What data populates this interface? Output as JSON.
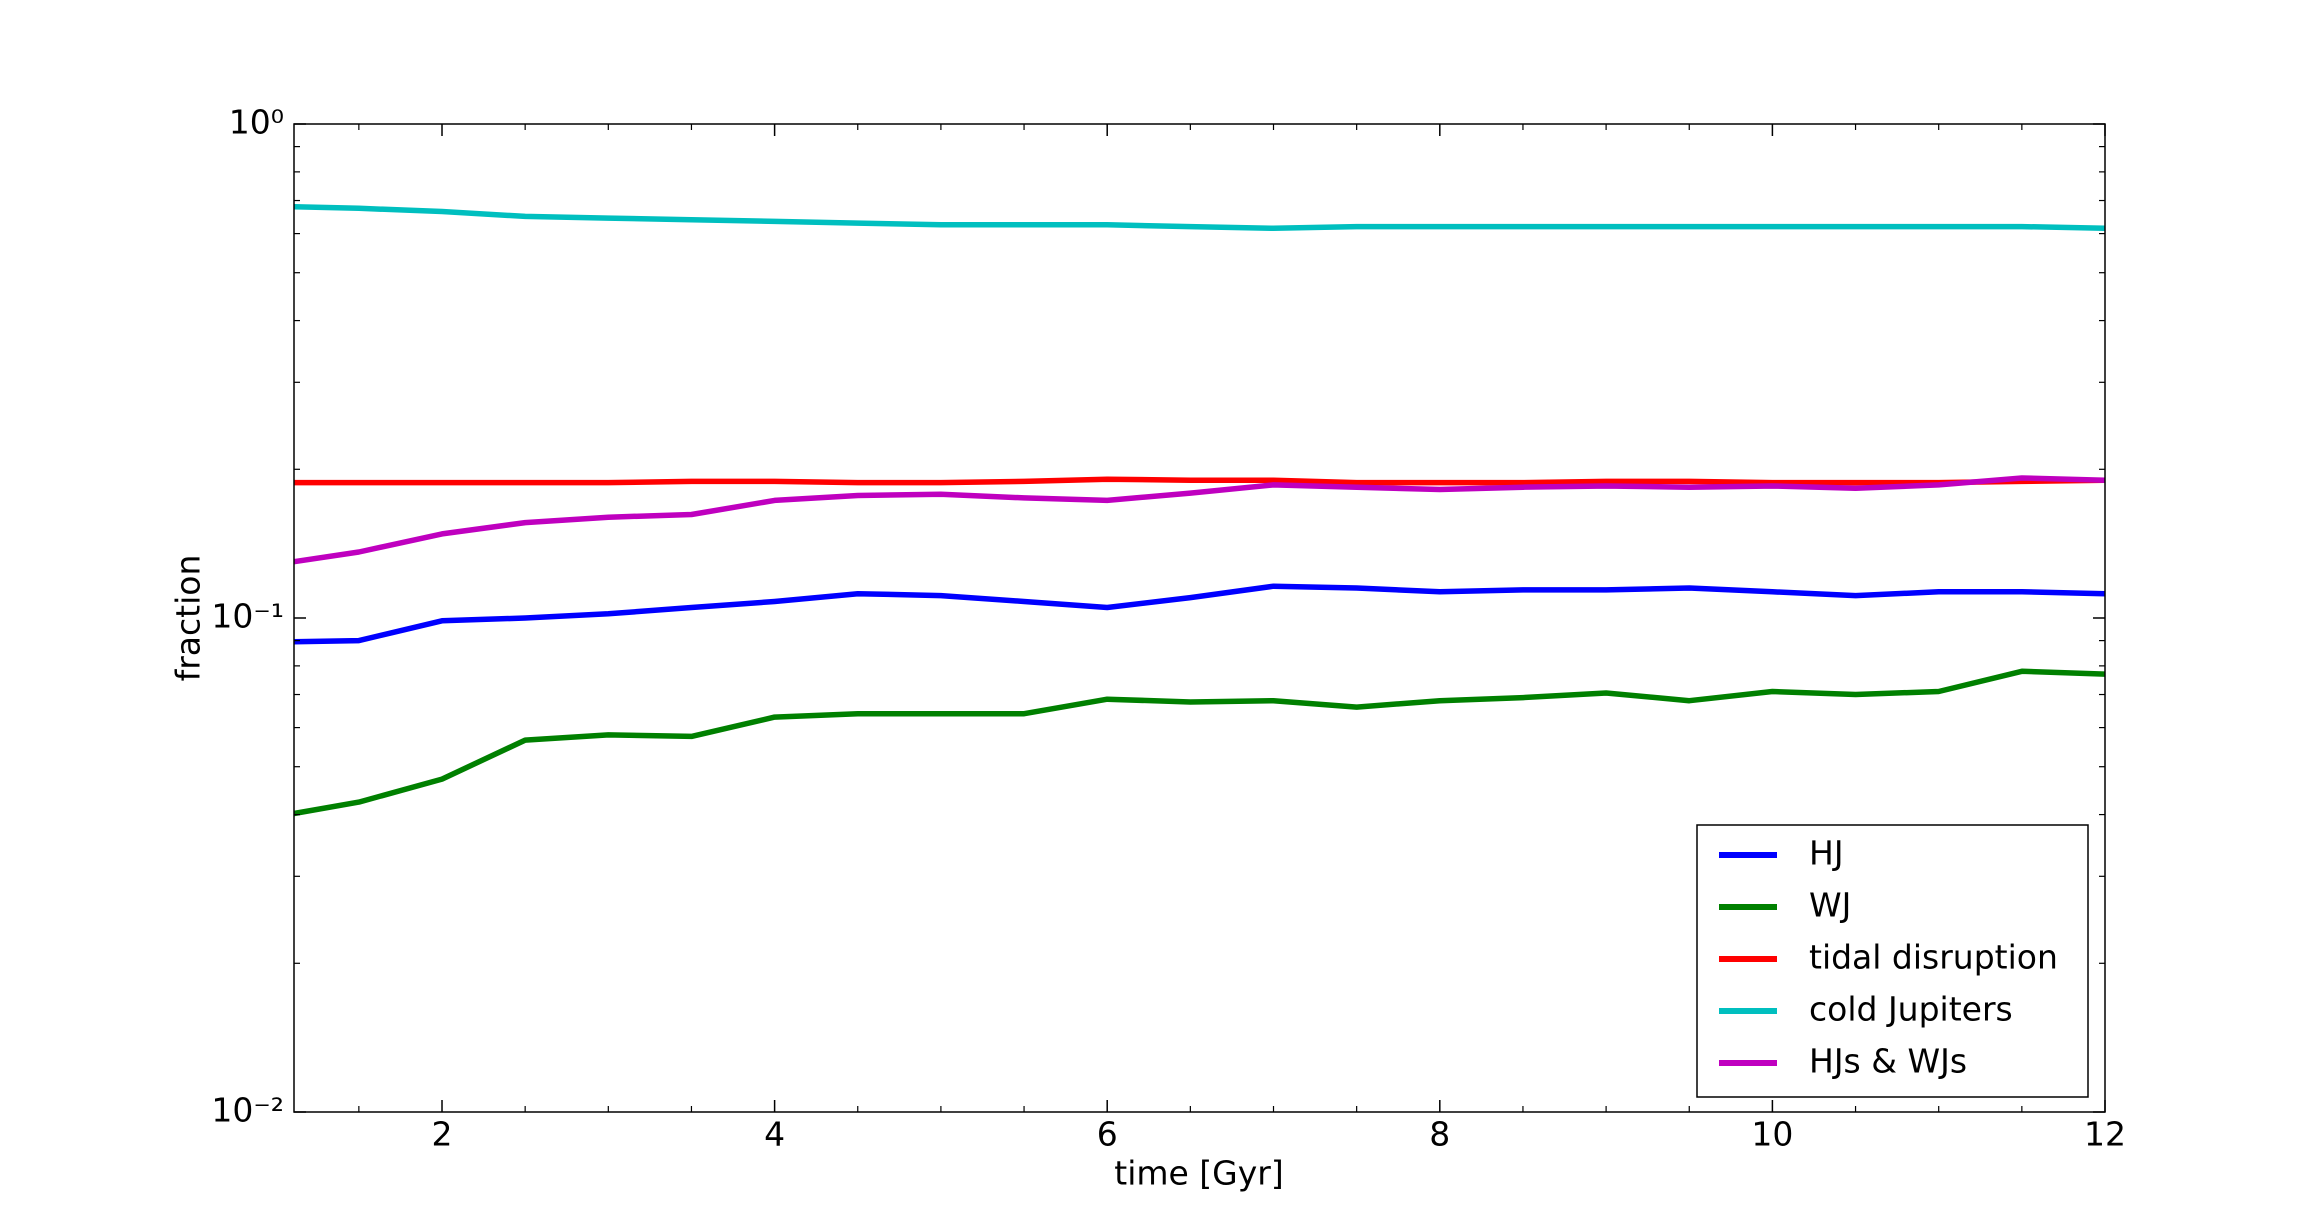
{
  "chart_data": {
    "type": "line",
    "xlabel": "time [Gyr]",
    "ylabel": "fraction",
    "x": [
      1.11,
      1.5,
      2,
      2.5,
      3,
      3.5,
      4,
      4.5,
      5,
      5.5,
      6,
      6.5,
      7,
      7.5,
      8,
      8.5,
      9,
      9.5,
      10,
      10.5,
      11,
      11.5,
      12
    ],
    "series": [
      {
        "name": "HJ",
        "color": "#0000ff",
        "values": [
          0.0895,
          0.09,
          0.0987,
          0.1,
          0.102,
          0.105,
          0.108,
          0.112,
          0.111,
          0.108,
          0.105,
          0.11,
          0.116,
          0.115,
          0.113,
          0.114,
          0.114,
          0.115,
          0.113,
          0.111,
          0.113,
          0.113,
          0.112
        ]
      },
      {
        "name": "WJ",
        "color": "#008000",
        "values": [
          0.0402,
          0.0424,
          0.0472,
          0.0566,
          0.058,
          0.0576,
          0.063,
          0.064,
          0.064,
          0.064,
          0.0685,
          0.0676,
          0.068,
          0.066,
          0.068,
          0.069,
          0.0705,
          0.068,
          0.071,
          0.07,
          0.071,
          0.078,
          0.077
        ]
      },
      {
        "name": "tidal disruption",
        "color": "#ff0000",
        "values": [
          0.188,
          0.188,
          0.188,
          0.188,
          0.188,
          0.189,
          0.189,
          0.188,
          0.188,
          0.189,
          0.191,
          0.19,
          0.19,
          0.188,
          0.188,
          0.188,
          0.189,
          0.189,
          0.188,
          0.188,
          0.188,
          0.189,
          0.19
        ]
      },
      {
        "name": "cold Jupiters",
        "color": "#00bfbf",
        "values": [
          0.68,
          0.675,
          0.665,
          0.65,
          0.645,
          0.64,
          0.635,
          0.63,
          0.625,
          0.625,
          0.625,
          0.62,
          0.615,
          0.62,
          0.62,
          0.62,
          0.62,
          0.62,
          0.62,
          0.62,
          0.62,
          0.62,
          0.615
        ]
      },
      {
        "name": "HJs & WJs",
        "color": "#bf00bf",
        "values": [
          0.13,
          0.136,
          0.148,
          0.156,
          0.16,
          0.162,
          0.173,
          0.177,
          0.178,
          0.175,
          0.173,
          0.179,
          0.186,
          0.184,
          0.182,
          0.184,
          0.185,
          0.184,
          0.185,
          0.183,
          0.186,
          0.192,
          0.19
        ]
      }
    ],
    "xlim": [
      1.11,
      12
    ],
    "ylim": [
      0.01,
      1
    ],
    "log_y": true,
    "xticks": [
      2,
      4,
      6,
      8,
      10,
      12
    ],
    "xminorticks": [
      1.5,
      2.5,
      3,
      3.5,
      4.5,
      5,
      5.5,
      6.5,
      7,
      7.5,
      8.5,
      9,
      9.5,
      10.5,
      11,
      11.5
    ],
    "yticks": [
      {
        "value": 0.01,
        "label": "10⁻²"
      },
      {
        "value": 0.1,
        "label": "10⁻¹"
      },
      {
        "value": 1,
        "label": "10⁰"
      }
    ],
    "yminorticks": [
      0.02,
      0.03,
      0.04,
      0.05,
      0.06,
      0.07,
      0.08,
      0.09,
      0.2,
      0.3,
      0.4,
      0.5,
      0.6,
      0.7,
      0.8,
      0.9
    ],
    "legend": "lower right"
  }
}
